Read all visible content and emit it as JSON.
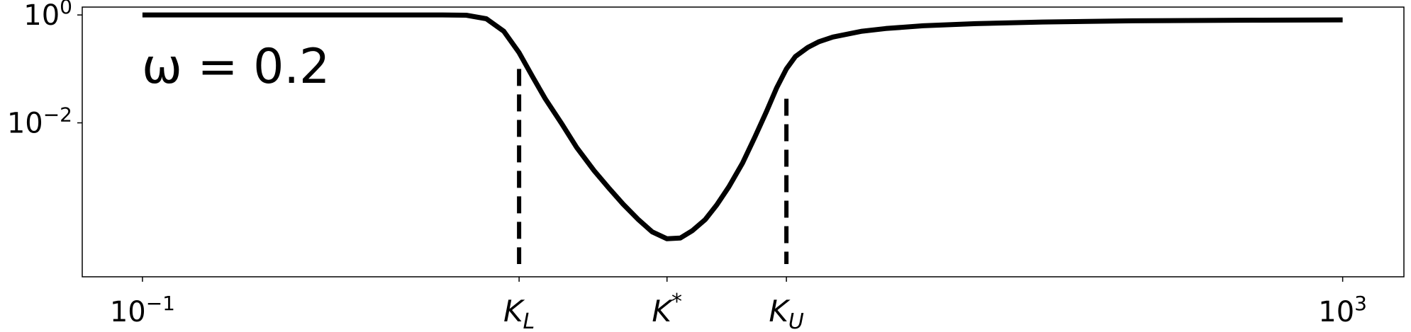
{
  "chart_data": {
    "type": "line",
    "title": "",
    "xlabel": "",
    "ylabel": "",
    "x_scale": "log",
    "y_scale": "log",
    "xlim": [
      0.063,
      1600
    ],
    "ylim": [
      1.4e-05,
      1.4
    ],
    "grid": false,
    "legend": "none",
    "annotation": "ω = 0.2",
    "x_ticks": [
      {
        "value": 0.1,
        "base": "10",
        "exp": "−1"
      },
      {
        "value": 1000,
        "base": "10",
        "exp": "3"
      }
    ],
    "x_named_ticks": [
      {
        "value": 1.8,
        "main": "K",
        "sub": "L",
        "sup": ""
      },
      {
        "value": 5.6,
        "main": "K",
        "sub": "",
        "sup": "*"
      },
      {
        "value": 14,
        "main": "K",
        "sub": "U",
        "sup": ""
      }
    ],
    "y_ticks": [
      {
        "value": 1,
        "base": "10",
        "exp": "0"
      },
      {
        "value": 0.01,
        "base": "10",
        "exp": "−2"
      }
    ],
    "vlines": [
      {
        "x": 1.8,
        "y_top": 0.1
      },
      {
        "x": 14,
        "y_top": 0.028
      }
    ],
    "series": [
      {
        "color": "#000000",
        "x": [
          0.1,
          0.5,
          1.0,
          1.2,
          1.4,
          1.6,
          1.8,
          2.0,
          2.2,
          2.5,
          2.8,
          3.2,
          3.6,
          4.0,
          4.5,
          5.0,
          5.6,
          6.2,
          6.8,
          7.5,
          8.2,
          9.0,
          10.0,
          11.0,
          12.0,
          13.0,
          14.0,
          15.0,
          16.5,
          18.0,
          20.0,
          25.0,
          30.0,
          40.0,
          60.0,
          100.0,
          200.0,
          500.0,
          1000.0
        ],
        "y": [
          1.0,
          1.0,
          1.0,
          0.99,
          0.85,
          0.5,
          0.2,
          0.07,
          0.028,
          0.0095,
          0.0035,
          0.0013,
          0.0006,
          0.00031,
          0.00016,
          9.5e-05,
          7.1e-05,
          7.3e-05,
          0.0001,
          0.00016,
          0.0003,
          0.00065,
          0.0018,
          0.0055,
          0.016,
          0.045,
          0.1,
          0.17,
          0.25,
          0.32,
          0.39,
          0.5,
          0.56,
          0.63,
          0.69,
          0.74,
          0.78,
          0.8,
          0.81
        ]
      }
    ]
  }
}
